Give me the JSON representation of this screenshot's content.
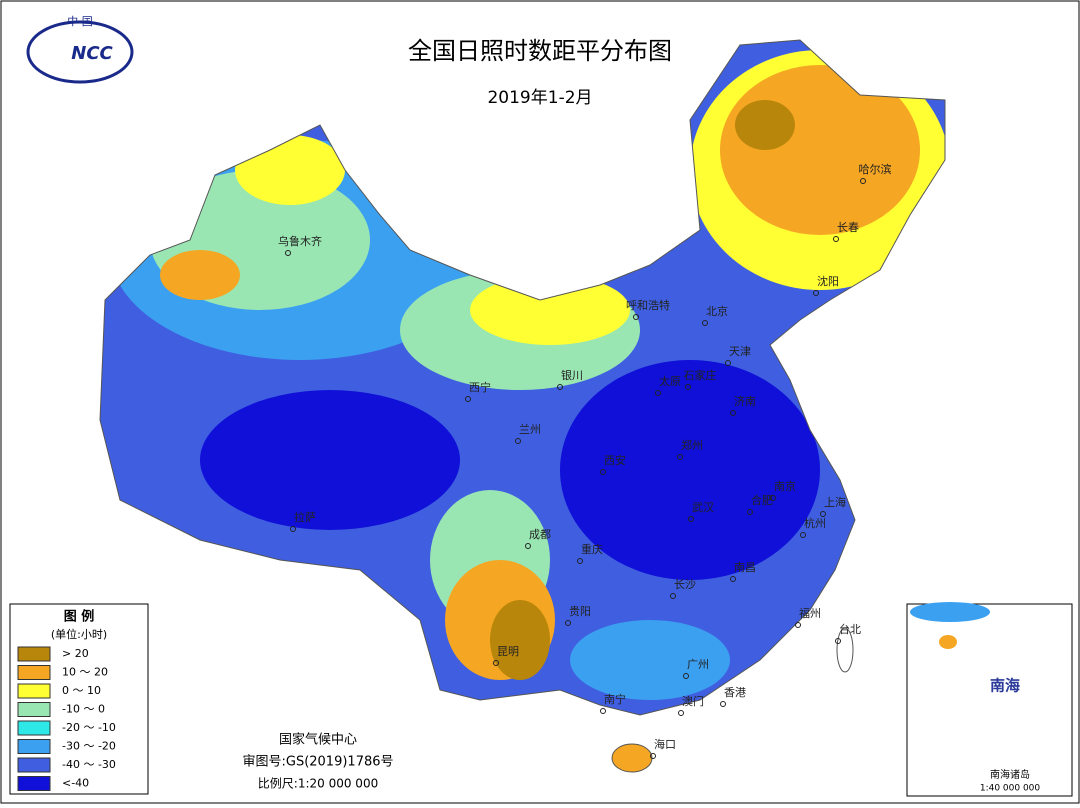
{
  "logo": {
    "top": "中 国",
    "mark": "NCC"
  },
  "header": {
    "title": "全国日照时数距平分布图",
    "subtitle": "2019年1-2月"
  },
  "legend": {
    "title": "图 例",
    "unit": "(单位:小时)",
    "items": [
      {
        "label": "> 20",
        "color": "#b8860b"
      },
      {
        "label": "10 ～ 20",
        "color": "#f5a623"
      },
      {
        "label": "0 ～ 10",
        "color": "#ffff33"
      },
      {
        "label": "-10 ～ 0",
        "color": "#99e6b3"
      },
      {
        "label": "-20 ～ -10",
        "color": "#2ee8e8"
      },
      {
        "label": "-30 ～ -20",
        "color": "#3ca0f0"
      },
      {
        "label": "-40 ～ -30",
        "color": "#3f5fe0"
      },
      {
        "label": "<-40",
        "color": "#1010d8"
      }
    ]
  },
  "cities": [
    "乌鲁木齐",
    "呼和浩特",
    "北京",
    "天津",
    "石家庄",
    "太原",
    "银川",
    "西宁",
    "兰州",
    "济南",
    "郑州",
    "西安",
    "南京",
    "合肥",
    "上海",
    "武汉",
    "杭州",
    "拉萨",
    "成都",
    "重庆",
    "长沙",
    "南昌",
    "贵阳",
    "福州",
    "昆明",
    "台北",
    "广州",
    "南宁",
    "香港",
    "澳门",
    "海口",
    "哈尔滨",
    "长春",
    "沈阳"
  ],
  "footer": {
    "org": "国家气候中心",
    "approval": "审图号:GS(2019)1786号",
    "scale": "比例尺:1:20 000 000"
  },
  "inset": {
    "sea": "南海",
    "islands": "南海诸岛",
    "scale": "1:40 000 000"
  }
}
